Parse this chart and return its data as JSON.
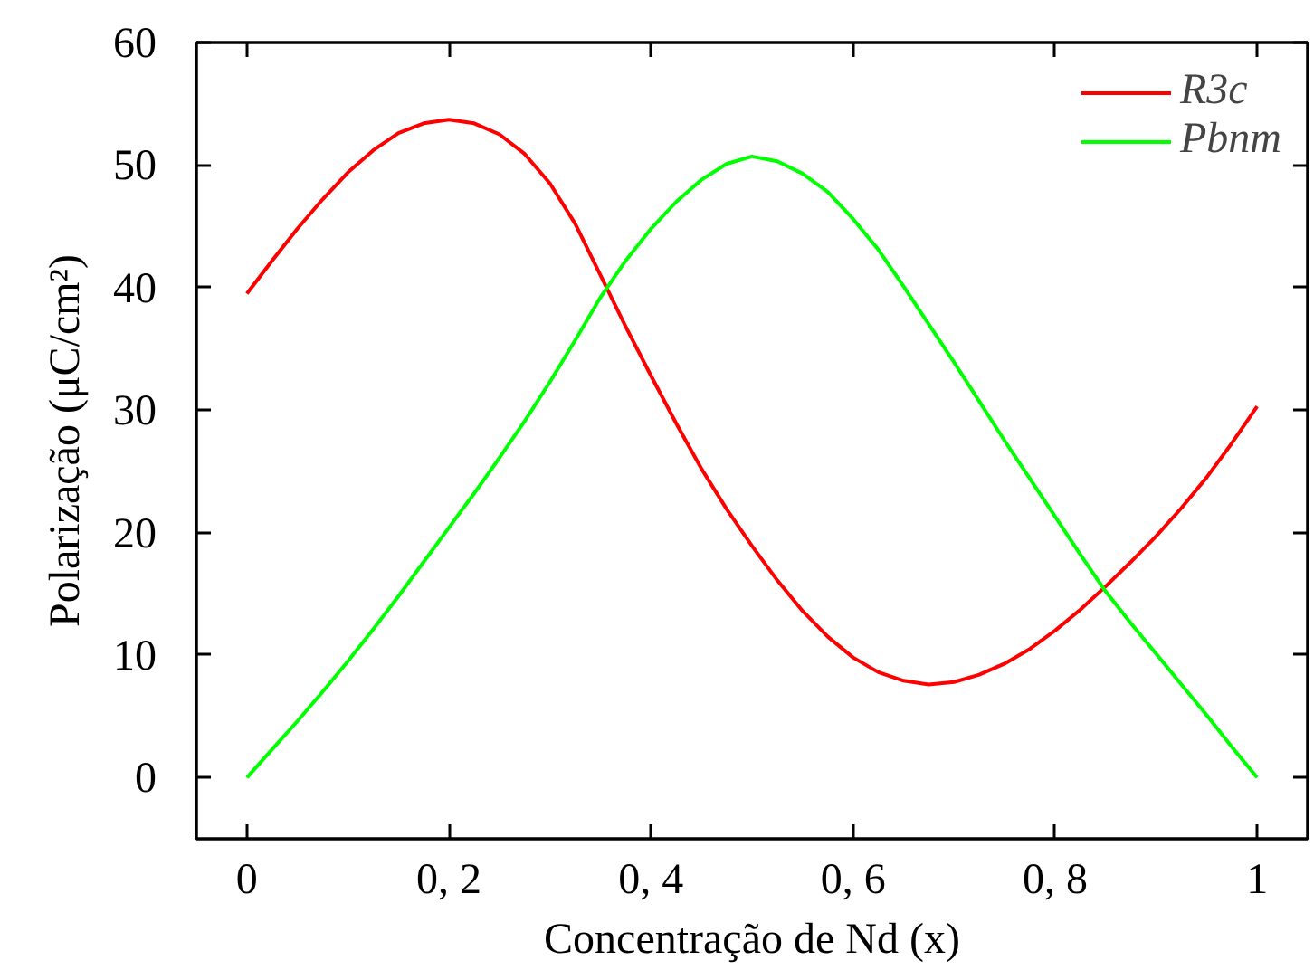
{
  "chart_data": {
    "type": "line",
    "xlabel": "Concentração de Nd (x)",
    "ylabel": "Polarização (μC/cm²)",
    "x": [
      0,
      0.025,
      0.05,
      0.075,
      0.1,
      0.125,
      0.15,
      0.175,
      0.2,
      0.225,
      0.25,
      0.275,
      0.3,
      0.325,
      0.35,
      0.375,
      0.4,
      0.425,
      0.45,
      0.475,
      0.5,
      0.525,
      0.55,
      0.575,
      0.6,
      0.625,
      0.65,
      0.675,
      0.7,
      0.725,
      0.75,
      0.775,
      0.8,
      0.825,
      0.85,
      0.875,
      0.9,
      0.925,
      0.95,
      0.975,
      1
    ],
    "series": [
      {
        "name": "R3c",
        "color": "#ff0000",
        "values": [
          39.5,
          42.2,
          44.8,
          47.2,
          49.4,
          51.2,
          52.6,
          53.4,
          53.7,
          53.4,
          52.5,
          50.9,
          48.5,
          45.2,
          41.0,
          36.8,
          32.8,
          28.9,
          25.2,
          21.9,
          18.9,
          16.1,
          13.6,
          11.5,
          9.8,
          8.6,
          7.9,
          7.6,
          7.8,
          8.4,
          9.3,
          10.5,
          12.0,
          13.7,
          15.6,
          17.6,
          19.7,
          22.0,
          24.5,
          27.3,
          30.3
        ]
      },
      {
        "name": "Pbnm",
        "color": "#00ff00",
        "values": [
          0,
          2.3,
          4.6,
          7.0,
          9.5,
          12.1,
          14.8,
          17.6,
          20.4,
          23.2,
          26.1,
          29.1,
          32.3,
          35.7,
          39.2,
          42.2,
          44.8,
          47.0,
          48.8,
          50.1,
          50.7,
          50.3,
          49.3,
          47.8,
          45.6,
          43.1,
          40.1,
          37.0,
          33.9,
          30.7,
          27.5,
          24.4,
          21.3,
          18.2,
          15.2,
          12.6,
          10.1,
          7.6,
          5.1,
          2.5,
          0
        ]
      }
    ],
    "xlim": [
      -0.05,
      1.05
    ],
    "ylim": [
      -5,
      60
    ],
    "xticks": [
      0,
      {
        "value": 0.2,
        "label": "0, 2"
      },
      {
        "value": 0.4,
        "label": "0, 4"
      },
      {
        "value": 0.6,
        "label": "0, 6"
      },
      {
        "value": 0.8,
        "label": "0, 8"
      },
      1
    ],
    "yticks": [
      0,
      10,
      20,
      30,
      40,
      50,
      60
    ],
    "grid": false,
    "legend": "top right",
    "marker": "none",
    "line_style": "solid"
  }
}
